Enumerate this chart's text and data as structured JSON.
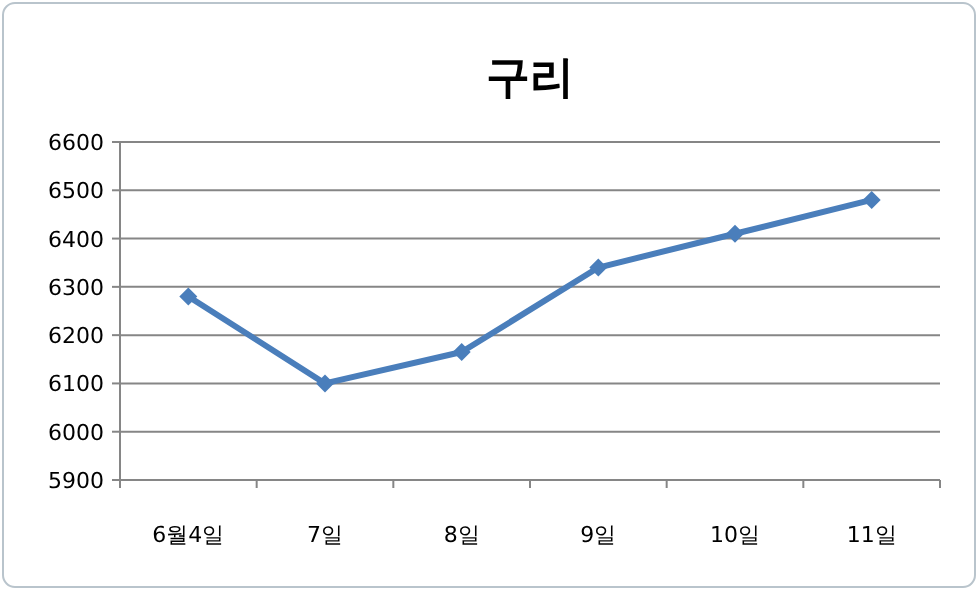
{
  "chart_data": {
    "type": "line",
    "title": "구리",
    "categories": [
      "6월4일",
      "7일",
      "8일",
      "9일",
      "10일",
      "11일"
    ],
    "series": [
      {
        "color": "#4a7ebb",
        "values": [
          6280,
          6100,
          6165,
          6340,
          6410,
          6480
        ]
      }
    ],
    "ylim": [
      5900,
      6600
    ],
    "yticks": [
      5900,
      6000,
      6100,
      6200,
      6300,
      6400,
      6500,
      6600
    ],
    "grid": "y",
    "marker": "diamond",
    "line_style": "solid"
  }
}
